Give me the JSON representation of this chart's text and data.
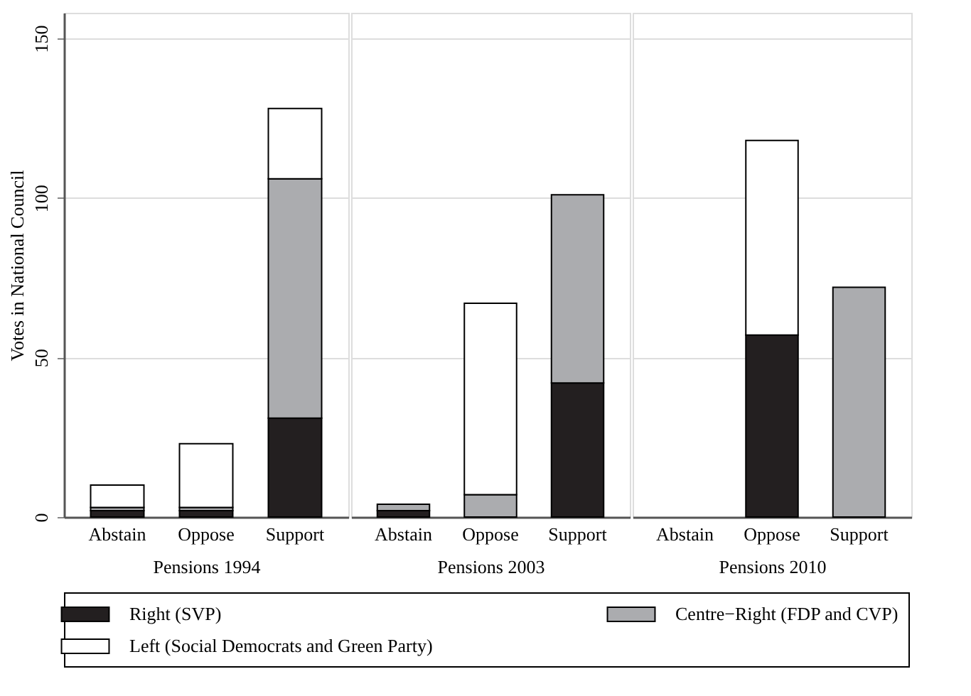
{
  "chart_data": [
    {
      "type": "bar",
      "stacked": true,
      "categories": [
        "Abstain",
        "Oppose",
        "Support"
      ],
      "xlabel": "Pensions 1994",
      "ylabel": "Votes in National Council",
      "ylim": [
        0,
        158
      ],
      "yticks": [
        0,
        50,
        100,
        150
      ],
      "grid": "y",
      "legend": "bottom",
      "series": [
        {
          "name": "Right (SVP)",
          "color": "#231f20",
          "values": [
            2,
            2,
            31
          ]
        },
        {
          "name": "Centre−Right (FDP and CVP)",
          "color": "#abacaf",
          "values": [
            1,
            1,
            75
          ]
        },
        {
          "name": "Left (Social Democrats and Green Party)",
          "color": "#ffffff",
          "values": [
            7,
            20,
            22
          ]
        }
      ]
    },
    {
      "type": "bar",
      "stacked": true,
      "categories": [
        "Abstain",
        "Oppose",
        "Support"
      ],
      "xlabel": "Pensions 2003",
      "ylim": [
        0,
        158
      ],
      "yticks": [
        0,
        50,
        100,
        150
      ],
      "grid": "y",
      "legend": "bottom",
      "tick_labels": "x",
      "series": [
        {
          "name": "Right (SVP)",
          "color": "#231f20",
          "values": [
            2,
            0,
            42
          ]
        },
        {
          "name": "Centre−Right (FDP and CVP)",
          "color": "#abacaf",
          "values": [
            2,
            7,
            59
          ]
        },
        {
          "name": "Left (Social Democrats and Green Party)",
          "color": "#ffffff",
          "values": [
            0,
            60,
            0
          ]
        }
      ]
    },
    {
      "type": "bar",
      "stacked": true,
      "categories": [
        "Abstain",
        "Oppose",
        "Support"
      ],
      "xlabel": "Pensions 2010",
      "ylim": [
        0,
        158
      ],
      "yticks": [
        0,
        50,
        100,
        150
      ],
      "grid": "y",
      "legend": "bottom",
      "tick_labels": "x",
      "series": [
        {
          "name": "Right (SVP)",
          "color": "#231f20",
          "values": [
            0,
            57,
            0
          ]
        },
        {
          "name": "Centre−Right (FDP and CVP)",
          "color": "#abacaf",
          "values": [
            0,
            0,
            72
          ]
        },
        {
          "name": "Left (Social Democrats and Green Party)",
          "color": "#ffffff",
          "values": [
            0,
            61,
            0
          ]
        }
      ]
    }
  ]
}
